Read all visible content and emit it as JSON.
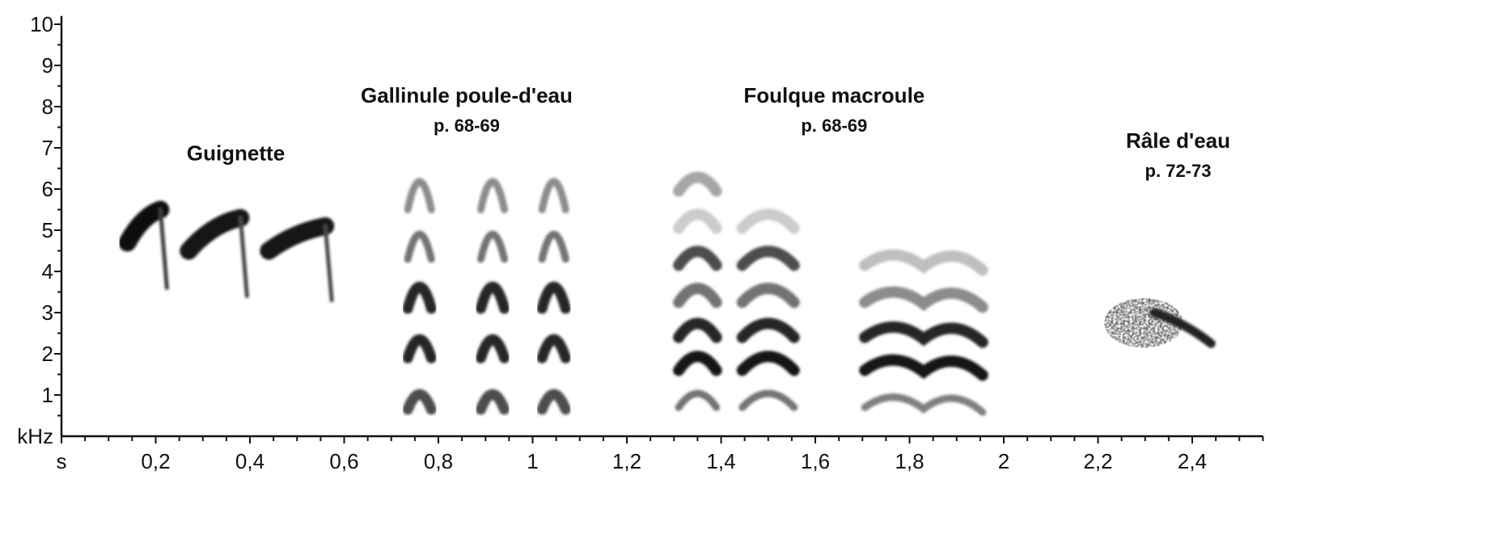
{
  "chart_data": {
    "type": "spectrogram",
    "x_unit": "s",
    "y_unit": "kHz",
    "xlim": [
      0,
      2.55
    ],
    "ylim": [
      0,
      10.2
    ],
    "x_ticks": [
      {
        "value": 0,
        "label": "s"
      },
      {
        "value": 0.2,
        "label": "0,2"
      },
      {
        "value": 0.4,
        "label": "0,4"
      },
      {
        "value": 0.6,
        "label": "0,6"
      },
      {
        "value": 0.8,
        "label": "0,8"
      },
      {
        "value": 1.0,
        "label": "1"
      },
      {
        "value": 1.2,
        "label": "1,2"
      },
      {
        "value": 1.4,
        "label": "1,4"
      },
      {
        "value": 1.6,
        "label": "1,6"
      },
      {
        "value": 1.8,
        "label": "1,8"
      },
      {
        "value": 2.0,
        "label": "2"
      },
      {
        "value": 2.2,
        "label": "2,2"
      },
      {
        "value": 2.4,
        "label": "2,4"
      }
    ],
    "y_ticks": [
      {
        "value": 0,
        "label": "kHz"
      },
      {
        "value": 1,
        "label": "1"
      },
      {
        "value": 2,
        "label": "2"
      },
      {
        "value": 3,
        "label": "3"
      },
      {
        "value": 4,
        "label": "4"
      },
      {
        "value": 5,
        "label": "5"
      },
      {
        "value": 6,
        "label": "6"
      },
      {
        "value": 7,
        "label": "7"
      },
      {
        "value": 8,
        "label": "8"
      },
      {
        "value": 9,
        "label": "9"
      },
      {
        "value": 10,
        "label": "10"
      }
    ],
    "species": [
      {
        "name": "Guignette",
        "page": "",
        "label_at": [
          0.37,
          6.7
        ],
        "calls": [
          {
            "t": 0.14,
            "dur": 0.07,
            "f_start": 4.7,
            "f_end": 5.5,
            "f_drop": 3.6,
            "intensity": 0.95
          },
          {
            "t": 0.27,
            "dur": 0.11,
            "f_start": 4.5,
            "f_end": 5.3,
            "f_drop": 3.4,
            "intensity": 0.9
          },
          {
            "t": 0.44,
            "dur": 0.12,
            "f_start": 4.5,
            "f_end": 5.1,
            "f_drop": 3.3,
            "intensity": 0.9
          }
        ]
      },
      {
        "name": "Gallinule poule-d'eau",
        "page": "p. 68-69",
        "label_at": [
          0.86,
          8.1
        ],
        "calls": [
          {
            "t": 0.76,
            "half_width": 0.025,
            "harmonics": [
              1.0,
              2.25,
              3.45,
              4.65,
              5.85
            ],
            "intensity": [
              0.7,
              0.85,
              0.85,
              0.55,
              0.45
            ]
          },
          {
            "t": 0.915,
            "half_width": 0.025,
            "harmonics": [
              1.0,
              2.25,
              3.45,
              4.65,
              5.85
            ],
            "intensity": [
              0.7,
              0.85,
              0.85,
              0.55,
              0.45
            ]
          },
          {
            "t": 1.045,
            "half_width": 0.025,
            "harmonics": [
              1.0,
              2.25,
              3.45,
              4.65,
              5.85
            ],
            "intensity": [
              0.7,
              0.85,
              0.85,
              0.55,
              0.45
            ]
          }
        ]
      },
      {
        "name": "Foulque macroule",
        "page": "p. 68-69",
        "label_at": [
          1.64,
          8.1
        ],
        "calls": [
          {
            "t": 1.35,
            "half_width": 0.04,
            "harmonics": [
              0.85,
              1.75,
              2.55,
              3.4,
              4.3,
              5.2,
              6.1
            ],
            "intensity": [
              0.55,
              0.9,
              0.85,
              0.55,
              0.7,
              0.2,
              0.35
            ]
          },
          {
            "t": 1.5,
            "half_width": 0.055,
            "harmonics": [
              0.85,
              1.75,
              2.55,
              3.4,
              4.3,
              5.2
            ],
            "intensity": [
              0.55,
              0.9,
              0.85,
              0.55,
              0.7,
              0.2
            ]
          },
          {
            "t": 1.83,
            "half_width": 0.125,
            "wavy": true,
            "harmonics": [
              0.85,
              1.75,
              2.55,
              3.4,
              4.3
            ],
            "intensity": [
              0.5,
              0.9,
              0.85,
              0.45,
              0.25
            ]
          }
        ]
      },
      {
        "name": "Râle d'eau",
        "page": "p. 72-73",
        "label_at": [
          2.37,
          7.0
        ],
        "calls": [
          {
            "t_start": 2.22,
            "t_end": 2.44,
            "f_low": 2.1,
            "f_high": 3.3,
            "noisy": true
          }
        ]
      }
    ]
  }
}
